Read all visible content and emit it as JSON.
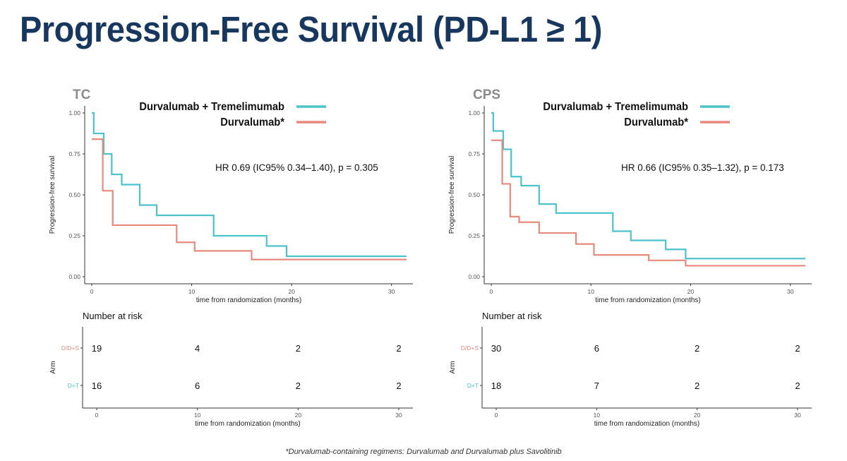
{
  "slide": {
    "title": "Progression-Free Survival (PD-L1 ≥ 1)",
    "footnote": "*Durvalumab-containing regimens: Durvalumab and Durvalumab plus Savolitinib"
  },
  "colors": {
    "dt": "#4cc3cc",
    "dd": "#e8897d",
    "title": "#17375e",
    "panel_label": "#8a8a8a"
  },
  "chart_data": [
    {
      "panel_label": "TC",
      "type": "line",
      "step": true,
      "xlabel": "time from randomization (months)",
      "ylabel": "Progression-free survival",
      "xlim": [
        0,
        32
      ],
      "ylim": [
        0,
        1
      ],
      "x_ticks": [
        0,
        10,
        20,
        30
      ],
      "y_ticks": [
        "0.00",
        "0.25",
        "0.50",
        "0.75",
        "1.00"
      ],
      "annotation": "HR 0.69 (IC95% 0.34–1.40), p = 0.305",
      "legend": [
        "Durvalumab + Tremelimumab",
        "Durvalumab*"
      ],
      "series": [
        {
          "name": "Durvalumab + Tremelimumab",
          "color": "#4cc3cc",
          "x": [
            0,
            0.2,
            1.2,
            2.0,
            3.0,
            4.8,
            6.5,
            12.2,
            17.5,
            19.5,
            31.5
          ],
          "y": [
            1.0,
            0.875,
            0.75,
            0.625,
            0.5625,
            0.4375,
            0.375,
            0.25,
            0.1875,
            0.125,
            0.125
          ]
        },
        {
          "name": "Durvalumab*",
          "color": "#e8897d",
          "x": [
            0,
            1.1,
            2.1,
            8.5,
            10.3,
            16.0,
            31.5
          ],
          "y": [
            0.84,
            0.525,
            0.315,
            0.21,
            0.158,
            0.105,
            0.105
          ]
        }
      ],
      "risk_table": {
        "title": "Number at risk",
        "ylabel": "Arm",
        "xlabel": "time from randomization (months)",
        "x_ticks": [
          0,
          10,
          20,
          30
        ],
        "rows": [
          {
            "label": "D/D+S",
            "color": "#e8897d",
            "values": [
              "19",
              "4",
              "2",
              "2"
            ]
          },
          {
            "label": "D+T",
            "color": "#4cc3cc",
            "values": [
              "16",
              "6",
              "2",
              "2"
            ]
          }
        ]
      }
    },
    {
      "panel_label": "CPS",
      "type": "line",
      "step": true,
      "xlabel": "time from randomization (months)",
      "ylabel": "Progression-free survival",
      "xlim": [
        0,
        32
      ],
      "ylim": [
        0,
        1
      ],
      "x_ticks": [
        0,
        10,
        20,
        30
      ],
      "y_ticks": [
        "0.00",
        "0.25",
        "0.50",
        "0.75",
        "1.00"
      ],
      "annotation": "HR 0.66 (IC95% 0.35–1.32), p = 0.173",
      "legend": [
        "Durvalumab + Tremelimumab",
        "Durvalumab*"
      ],
      "series": [
        {
          "name": "Durvalumab + Tremelimumab",
          "color": "#4cc3cc",
          "x": [
            0,
            0.2,
            1.2,
            2.0,
            3.0,
            4.8,
            6.5,
            12.2,
            14.0,
            17.5,
            19.5,
            31.5
          ],
          "y": [
            1.0,
            0.89,
            0.778,
            0.611,
            0.556,
            0.444,
            0.389,
            0.278,
            0.222,
            0.167,
            0.111,
            0.111
          ]
        },
        {
          "name": "Durvalumab*",
          "color": "#e8897d",
          "x": [
            0,
            1.1,
            1.9,
            2.8,
            4.8,
            8.5,
            10.3,
            15.8,
            19.5,
            31.5
          ],
          "y": [
            0.833,
            0.567,
            0.367,
            0.333,
            0.267,
            0.2,
            0.133,
            0.1,
            0.067,
            0.067
          ]
        }
      ],
      "risk_table": {
        "title": "Number at risk",
        "ylabel": "Arm",
        "xlabel": "time from randomization (months)",
        "x_ticks": [
          0,
          10,
          20,
          30
        ],
        "rows": [
          {
            "label": "D/D+S",
            "color": "#e8897d",
            "values": [
              "30",
              "6",
              "2",
              "2"
            ]
          },
          {
            "label": "D+T",
            "color": "#4cc3cc",
            "values": [
              "18",
              "7",
              "2",
              "2"
            ]
          }
        ]
      }
    }
  ]
}
